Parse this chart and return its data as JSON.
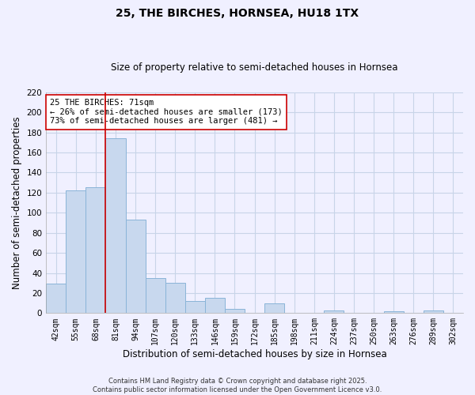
{
  "title": "25, THE BIRCHES, HORNSEA, HU18 1TX",
  "subtitle": "Size of property relative to semi-detached houses in Hornsea",
  "xlabel": "Distribution of semi-detached houses by size in Hornsea",
  "ylabel": "Number of semi-detached properties",
  "categories": [
    "42sqm",
    "55sqm",
    "68sqm",
    "81sqm",
    "94sqm",
    "107sqm",
    "120sqm",
    "133sqm",
    "146sqm",
    "159sqm",
    "172sqm",
    "185sqm",
    "198sqm",
    "211sqm",
    "224sqm",
    "237sqm",
    "250sqm",
    "263sqm",
    "276sqm",
    "289sqm",
    "302sqm"
  ],
  "values": [
    29,
    122,
    125,
    174,
    93,
    35,
    30,
    12,
    15,
    4,
    0,
    10,
    0,
    0,
    3,
    0,
    0,
    2,
    0,
    3,
    0
  ],
  "bar_color": "#c8d8ee",
  "bar_edge_color": "#8ab4d8",
  "ylim": [
    0,
    220
  ],
  "yticks": [
    0,
    20,
    40,
    60,
    80,
    100,
    120,
    140,
    160,
    180,
    200,
    220
  ],
  "vline_x_index": 2.5,
  "marker_label": "25 THE BIRCHES: 71sqm",
  "annotation_line1": "← 26% of semi-detached houses are smaller (173)",
  "annotation_line2": "73% of semi-detached houses are larger (481) →",
  "vline_color": "#cc0000",
  "annotation_box_facecolor": "#ffffff",
  "annotation_box_edgecolor": "#cc0000",
  "footer_line1": "Contains HM Land Registry data © Crown copyright and database right 2025.",
  "footer_line2": "Contains public sector information licensed under the Open Government Licence v3.0.",
  "background_color": "#f0f0ff",
  "grid_color": "#c8d4e8",
  "title_fontsize": 10,
  "subtitle_fontsize": 8.5,
  "tick_fontsize": 7,
  "ylabel_fontsize": 8.5,
  "xlabel_fontsize": 8.5,
  "annotation_fontsize": 7.5,
  "footer_fontsize": 6
}
